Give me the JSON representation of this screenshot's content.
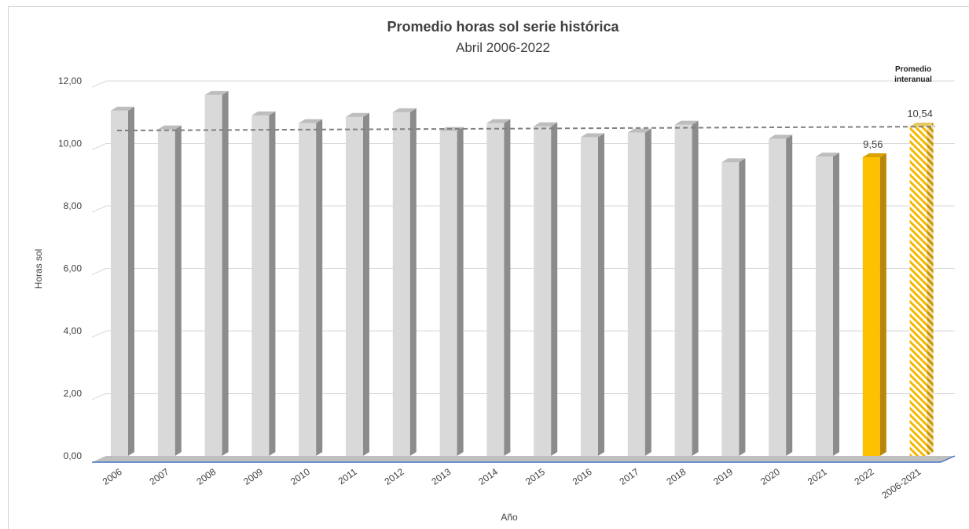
{
  "chart_data": {
    "type": "bar",
    "title": "Promedio horas sol serie histórica",
    "subtitle": "Abril 2006-2022",
    "xlabel": "Año",
    "ylabel": "Horas sol",
    "ylim": [
      0,
      12
    ],
    "yticks": [
      "0,00",
      "2,00",
      "4,00",
      "6,00",
      "8,00",
      "10,00",
      "12,00"
    ],
    "categories": [
      "2006",
      "2007",
      "2008",
      "2009",
      "2010",
      "2011",
      "2012",
      "2013",
      "2014",
      "2015",
      "2016",
      "2017",
      "2018",
      "2019",
      "2020",
      "2021",
      "2022",
      "2006-2021"
    ],
    "values": [
      11.05,
      10.45,
      11.55,
      10.9,
      10.65,
      10.85,
      11.0,
      10.4,
      10.65,
      10.55,
      10.2,
      10.35,
      10.6,
      9.4,
      10.15,
      9.58,
      9.56,
      10.54
    ],
    "data_labels": [
      null,
      null,
      null,
      null,
      null,
      null,
      null,
      null,
      null,
      null,
      null,
      null,
      null,
      null,
      null,
      null,
      "9,56",
      "10,54"
    ],
    "average_line": {
      "value": 10.54,
      "style": "dashed",
      "label": "Promedio interanual",
      "label_lines": [
        "Promedio",
        "interanual"
      ]
    },
    "grid": true,
    "legend": "none",
    "colors": {
      "bar": "#d9d9d9",
      "bar_side": "#8c8c8c",
      "highlight": "#ffc000",
      "highlight_side": "#b8860b",
      "average_bar": "hatched-yellow",
      "avg_line": "#808080",
      "axis_line": "#4472c4"
    }
  }
}
